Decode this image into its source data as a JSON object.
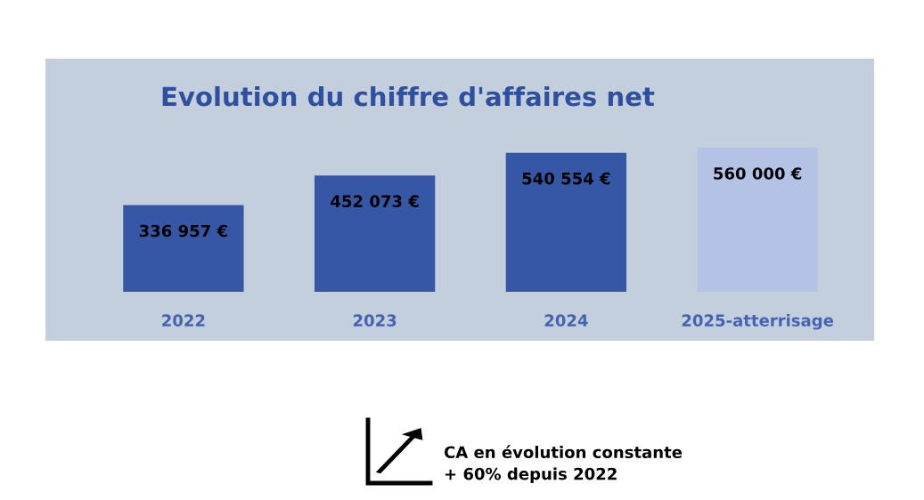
{
  "chart_data": {
    "type": "bar",
    "title": "Evolution du chiffre d'affaires net",
    "categories": [
      "2022",
      "2023",
      "2024",
      "2025-atterrisage"
    ],
    "values": [
      336957,
      452073,
      540554,
      560000
    ],
    "colors": [
      "#3657a6",
      "#3657a6",
      "#3657a6",
      "#b4c2e6"
    ],
    "value_labels": [
      "336 957 €",
      "452 073 €",
      "540 554 €",
      "560 000 €"
    ],
    "annotations": [
      "CA en évolution constante\n+ 60% depuis 2022"
    ]
  }
}
